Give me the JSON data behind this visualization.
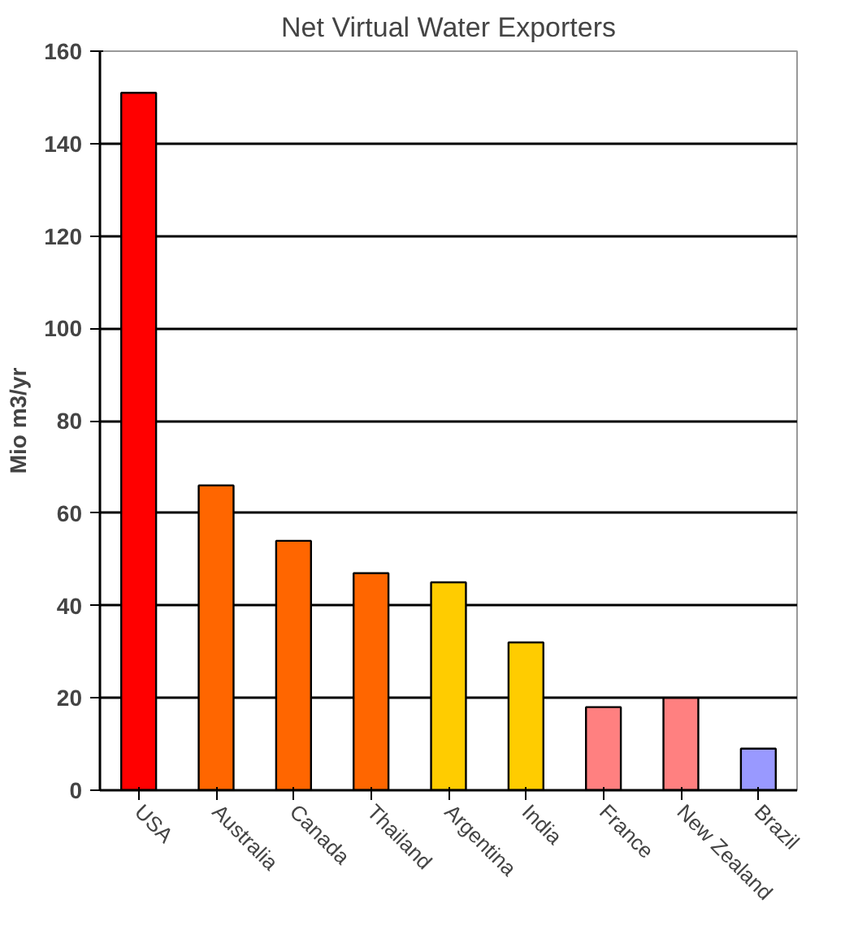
{
  "chart_data": {
    "type": "bar",
    "title": "Net Virtual Water Exporters",
    "ylabel": "Mio m3/yr",
    "categories": [
      "USA",
      "Australia",
      "Canada",
      "Thailand",
      "Argentina",
      "India",
      "France",
      "New Zealand",
      "Brazil"
    ],
    "values": [
      151,
      66,
      54,
      47,
      45,
      32,
      18,
      20,
      9
    ],
    "colors": [
      "#ff0000",
      "#ff6600",
      "#ff6600",
      "#ff6600",
      "#ffcc00",
      "#ffcc00",
      "#ff8080",
      "#ff8080",
      "#9999ff"
    ],
    "ylim": [
      0,
      160
    ],
    "yticks": [
      0,
      20,
      40,
      60,
      80,
      100,
      120,
      140,
      160
    ],
    "grid": "y"
  }
}
